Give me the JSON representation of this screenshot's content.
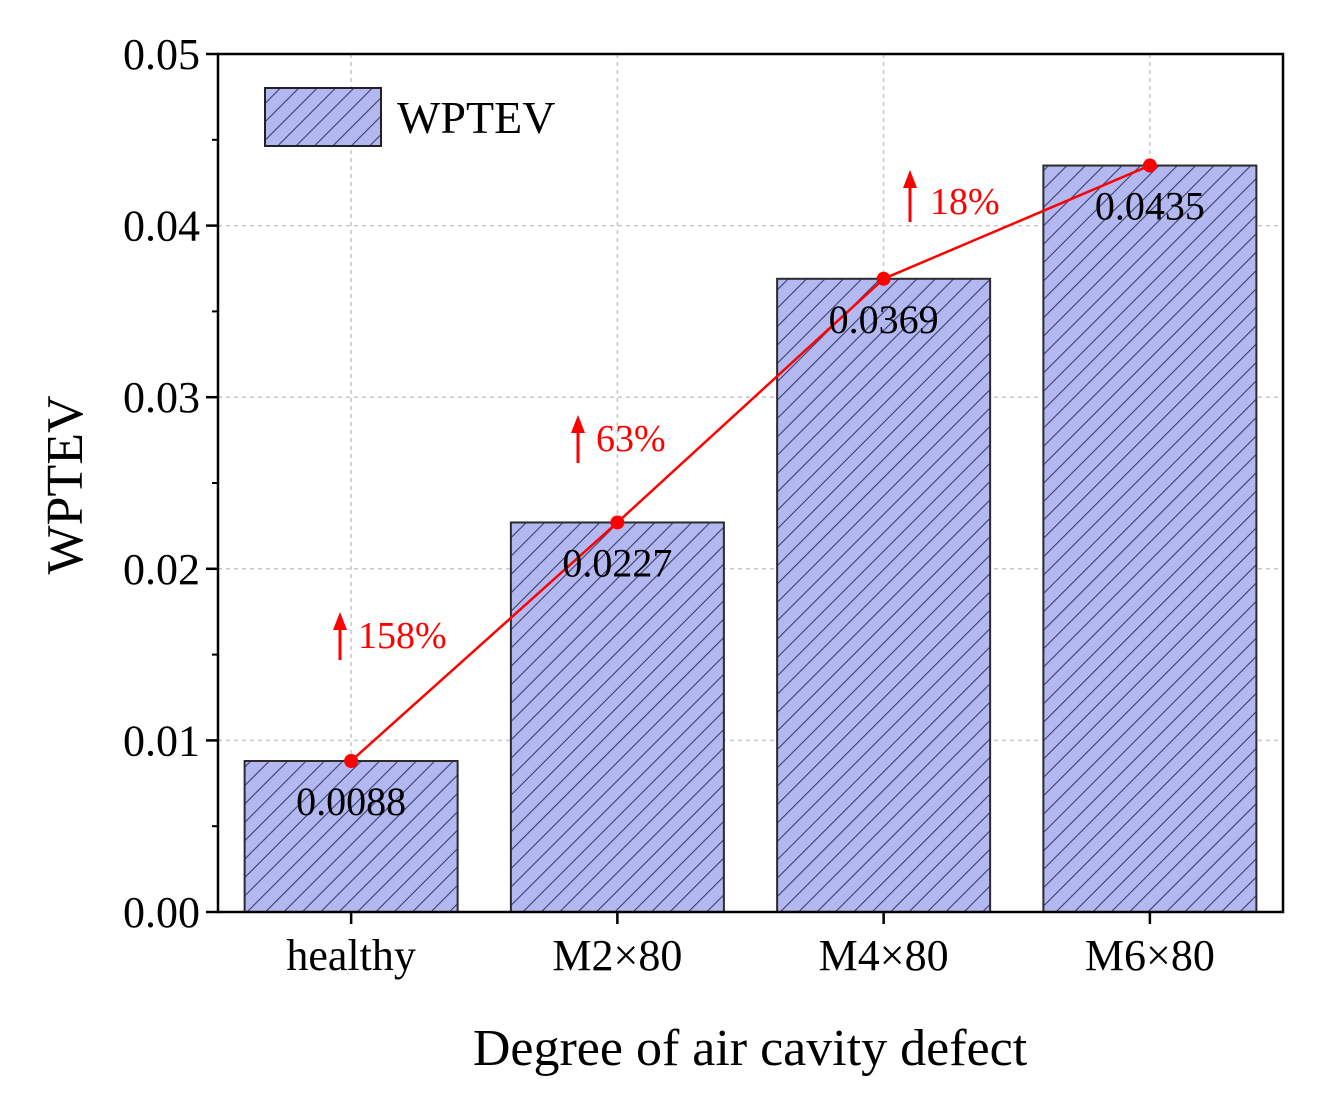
{
  "chart_data": {
    "type": "bar",
    "title": "",
    "xlabel": "Degree of air cavity defect",
    "ylabel": "WPTEV",
    "categories": [
      "healthy",
      "M2×80",
      "M4×80",
      "M6×80"
    ],
    "series": [
      {
        "name": "WPTEV",
        "values": [
          0.0088,
          0.0227,
          0.0369,
          0.0435
        ]
      }
    ],
    "value_labels": [
      "0.0088",
      "0.0227",
      "0.0369",
      "0.0435"
    ],
    "trend_line": {
      "values": [
        0.0088,
        0.0227,
        0.0369,
        0.0435
      ],
      "color": "#ff0000"
    },
    "increase_annotations": [
      "158%",
      "63%",
      "18%"
    ],
    "ylim": [
      0,
      0.05
    ],
    "yticks": [
      0.0,
      0.01,
      0.02,
      0.03,
      0.04,
      0.05
    ],
    "ytick_labels": [
      "0.00",
      "0.01",
      "0.02",
      "0.03",
      "0.04",
      "0.05"
    ],
    "grid": true,
    "legend": {
      "label": "WPTEV",
      "position": "top-left"
    },
    "colors": {
      "bar_fill": "#b3b9f0",
      "hatch": "#3a3f6e",
      "line": "#ff0000",
      "grid": "#c8c8c8"
    }
  }
}
